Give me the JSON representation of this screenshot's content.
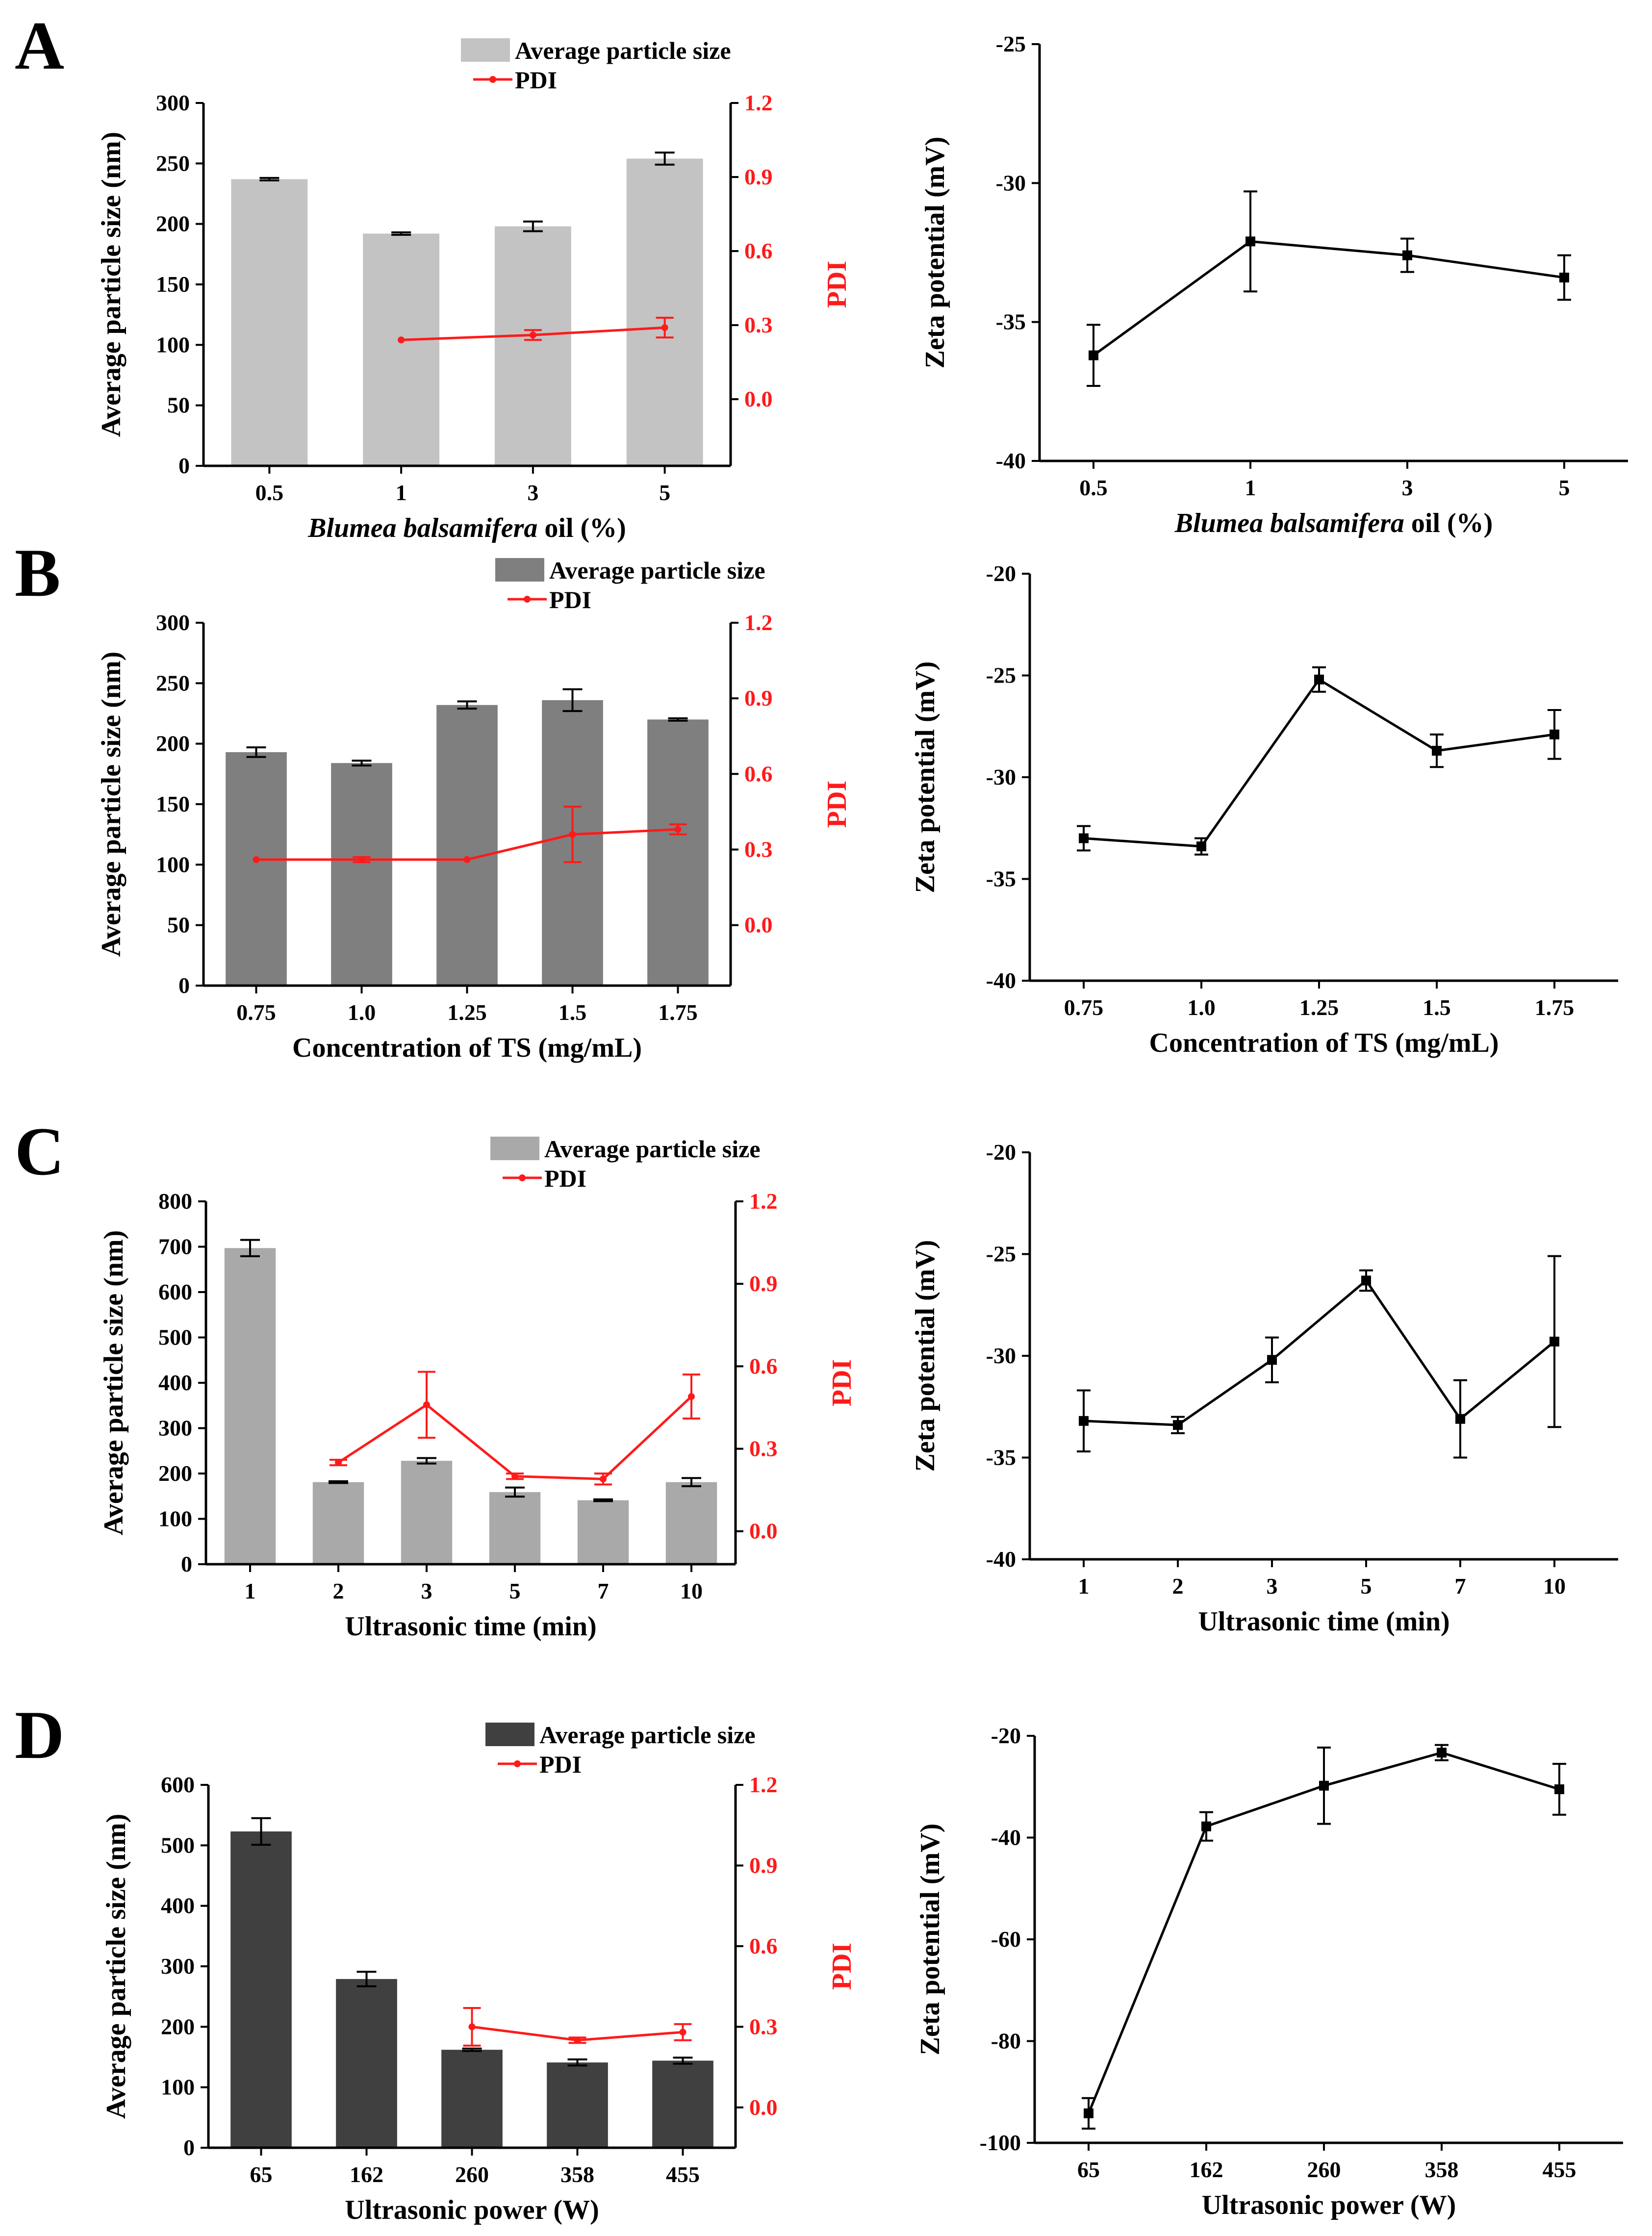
{
  "figure": {
    "colors": {
      "pdi": "#ff1a1a",
      "axis": "#000000",
      "zeta": "#000000"
    },
    "panels": [
      {
        "letter": "A",
        "categories": [
          "0.5",
          "1",
          "3",
          "5"
        ],
        "xlabel_parts": [
          {
            "t": "Blumea balsamifera",
            "i": true
          },
          {
            "t": " oil (%)",
            "i": false
          }
        ],
        "bar_color": "#c3c3c3"
      },
      {
        "letter": "B",
        "categories": [
          "0.75",
          "1.0",
          "1.25",
          "1.5",
          "1.75"
        ],
        "xlabel_parts": [
          {
            "t": "Concentration of TS (mg/mL)",
            "i": false
          }
        ],
        "bar_color": "#7f7f7f"
      },
      {
        "letter": "C",
        "categories": [
          "1",
          "2",
          "3",
          "5",
          "7",
          "10"
        ],
        "xlabel_parts": [
          {
            "t": "Ultrasonic time (min)",
            "i": false
          }
        ],
        "bar_color": "#a9a9a9"
      },
      {
        "letter": "D",
        "categories": [
          "65",
          "162",
          "260",
          "358",
          "455"
        ],
        "xlabel_parts": [
          {
            "t": "Ultrasonic power (W)",
            "i": false
          }
        ],
        "bar_color": "#404040"
      }
    ]
  },
  "chart_data": [
    {
      "type": "bar+line",
      "panel": "A",
      "title": "",
      "categories": [
        "0.5",
        "1",
        "3",
        "5"
      ],
      "xlabel": "Blumea balsamifera oil (%)",
      "ylabel": "Average particle size (nm)",
      "ylabel2": "PDI",
      "ylim": [
        0,
        300
      ],
      "yticks": [
        0,
        50,
        100,
        150,
        200,
        250,
        300
      ],
      "y2lim": [
        -0.27,
        1.2
      ],
      "y2ticks": [
        0.0,
        0.3,
        0.6,
        0.9,
        1.2
      ],
      "y2ticklabels": [
        "0.0",
        "0.3",
        "0.6",
        "0.9",
        "1.2"
      ],
      "legend": [
        "Average particle size",
        "PDI"
      ],
      "series": [
        {
          "name": "Average particle size",
          "kind": "bar",
          "values": [
            237,
            192,
            198,
            254
          ],
          "errors": [
            1,
            1,
            4,
            5
          ]
        },
        {
          "name": "PDI",
          "kind": "line",
          "values": [
            null,
            0.24,
            0.26,
            0.29
          ],
          "errors": [
            null,
            0.005,
            0.02,
            0.04
          ]
        }
      ]
    },
    {
      "type": "line",
      "panel": "A",
      "title": "",
      "categories": [
        "0.5",
        "1",
        "3",
        "5"
      ],
      "xlabel": "Blumea balsamifera oil (%)",
      "ylabel": "Zeta potential (mV)",
      "ylim": [
        -40,
        -25
      ],
      "yticks": [
        -40,
        -35,
        -30,
        -25
      ],
      "series": [
        {
          "name": "Zeta potential",
          "values": [
            -36.2,
            -32.1,
            -32.6,
            -33.4
          ],
          "errors": [
            1.1,
            1.8,
            0.6,
            0.8
          ]
        }
      ]
    },
    {
      "type": "bar+line",
      "panel": "B",
      "title": "",
      "categories": [
        "0.75",
        "1.0",
        "1.25",
        "1.5",
        "1.75"
      ],
      "xlabel": "Concentration of TS (mg/mL)",
      "ylabel": "Average particle size (nm)",
      "ylabel2": "PDI",
      "ylim": [
        0,
        300
      ],
      "yticks": [
        0,
        50,
        100,
        150,
        200,
        250,
        300
      ],
      "y2lim": [
        -0.24,
        1.2
      ],
      "y2ticks": [
        0.0,
        0.3,
        0.6,
        0.9,
        1.2
      ],
      "y2ticklabels": [
        "0.0",
        "0.3",
        "0.6",
        "0.9",
        "1.2"
      ],
      "legend": [
        "Average particle size",
        "PDI"
      ],
      "series": [
        {
          "name": "Average particle size",
          "kind": "bar",
          "values": [
            193,
            184,
            232,
            236,
            220
          ],
          "errors": [
            4,
            2,
            3,
            9,
            1
          ]
        },
        {
          "name": "PDI",
          "kind": "line",
          "values": [
            0.26,
            0.26,
            0.26,
            0.36,
            0.38
          ],
          "errors": [
            0.005,
            0.01,
            0.005,
            0.11,
            0.02
          ]
        }
      ]
    },
    {
      "type": "line",
      "panel": "B",
      "title": "",
      "categories": [
        "0.75",
        "1.0",
        "1.25",
        "1.5",
        "1.75"
      ],
      "xlabel": "Concentration of TS (mg/mL)",
      "ylabel": "Zeta potential (mV)",
      "ylim": [
        -40,
        -20
      ],
      "yticks": [
        -40,
        -35,
        -30,
        -25,
        -20
      ],
      "series": [
        {
          "name": "Zeta potential",
          "values": [
            -33.0,
            -33.4,
            -25.2,
            -28.7,
            -27.9
          ],
          "errors": [
            0.6,
            0.4,
            0.6,
            0.8,
            1.2
          ]
        }
      ]
    },
    {
      "type": "bar+line",
      "panel": "C",
      "title": "",
      "categories": [
        "1",
        "2",
        "3",
        "5",
        "7",
        "10"
      ],
      "xlabel": "Ultrasonic time (min)",
      "ylabel": "Average particle size (nm)",
      "ylabel2": "PDI",
      "ylim": [
        0,
        800
      ],
      "yticks": [
        0,
        100,
        200,
        300,
        400,
        500,
        600,
        700,
        800
      ],
      "y2lim": [
        -0.12,
        1.2
      ],
      "y2ticks": [
        0.0,
        0.3,
        0.6,
        0.9,
        1.2
      ],
      "y2ticklabels": [
        "0.0",
        "0.3",
        "0.6",
        "0.9",
        "1.2"
      ],
      "legend": [
        "Average particle size",
        "PDI"
      ],
      "series": [
        {
          "name": "Average particle size",
          "kind": "bar",
          "values": [
            697,
            181,
            228,
            159,
            141,
            181
          ],
          "errors": [
            18,
            2,
            6,
            10,
            2,
            9
          ]
        },
        {
          "name": "PDI",
          "kind": "line",
          "values": [
            null,
            0.25,
            0.46,
            0.2,
            0.19,
            0.49
          ],
          "errors": [
            null,
            0.01,
            0.12,
            0.01,
            0.02,
            0.08
          ]
        }
      ]
    },
    {
      "type": "line",
      "panel": "C",
      "title": "",
      "categories": [
        "1",
        "2",
        "3",
        "5",
        "7",
        "10"
      ],
      "xlabel": "Ultrasonic time (min)",
      "ylabel": "Zeta potential (mV)",
      "ylim": [
        -40,
        -20
      ],
      "yticks": [
        -40,
        -35,
        -30,
        -25,
        -20
      ],
      "series": [
        {
          "name": "Zeta potential",
          "values": [
            -33.2,
            -33.4,
            -30.2,
            -26.3,
            -33.1,
            -29.3
          ],
          "errors": [
            1.5,
            0.4,
            1.1,
            0.5,
            1.9,
            4.2
          ]
        }
      ]
    },
    {
      "type": "bar+line",
      "panel": "D",
      "title": "",
      "categories": [
        "65",
        "162",
        "260",
        "358",
        "455"
      ],
      "xlabel": "Ultrasonic power (W)",
      "ylabel": "Average particle size (nm)",
      "ylabel2": "PDI",
      "ylim": [
        0,
        600
      ],
      "yticks": [
        0,
        100,
        200,
        300,
        400,
        500,
        600
      ],
      "y2lim": [
        -0.15,
        1.2
      ],
      "y2ticks": [
        0.0,
        0.3,
        0.6,
        0.9,
        1.2
      ],
      "y2ticklabels": [
        "0.0",
        "0.3",
        "0.6",
        "0.9",
        "1.2"
      ],
      "legend": [
        "Average particle size",
        "PDI"
      ],
      "series": [
        {
          "name": "Average particle size",
          "kind": "bar",
          "values": [
            523,
            279,
            162,
            141,
            144
          ],
          "errors": [
            22,
            12,
            2,
            5,
            5
          ]
        },
        {
          "name": "PDI",
          "kind": "line",
          "values": [
            null,
            null,
            0.3,
            0.25,
            0.28
          ],
          "errors": [
            null,
            null,
            0.07,
            0.01,
            0.03
          ]
        }
      ]
    },
    {
      "type": "line",
      "panel": "D",
      "title": "",
      "categories": [
        "65",
        "162",
        "260",
        "358",
        "455"
      ],
      "xlabel": "Ultrasonic power (W)",
      "ylabel": "Zeta potential (mV)",
      "ylim": [
        -100,
        -20
      ],
      "yticks": [
        -100,
        -80,
        -60,
        -40,
        -20
      ],
      "series": [
        {
          "name": "Zeta potential",
          "values": [
            -94.2,
            -37.8,
            -29.8,
            -23.3,
            -30.5
          ],
          "errors": [
            3,
            2.8,
            7.5,
            1.5,
            5
          ]
        }
      ]
    }
  ]
}
